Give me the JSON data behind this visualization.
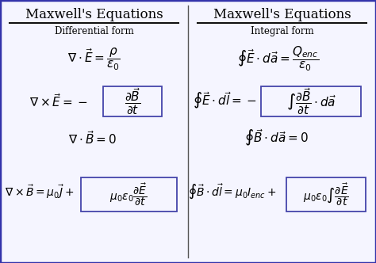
{
  "bg_color": "#ffffff",
  "panel_color": "#f5f5ff",
  "border_color": "#3333aa",
  "box_color": "#4444aa",
  "text_color": "#000000",
  "title_left": "Maxwell's Equations",
  "title_right": "Maxwell's Equations",
  "subtitle_left": "Differential form",
  "subtitle_right": "Integral form",
  "figsize": [
    4.74,
    3.32
  ],
  "dpi": 100
}
